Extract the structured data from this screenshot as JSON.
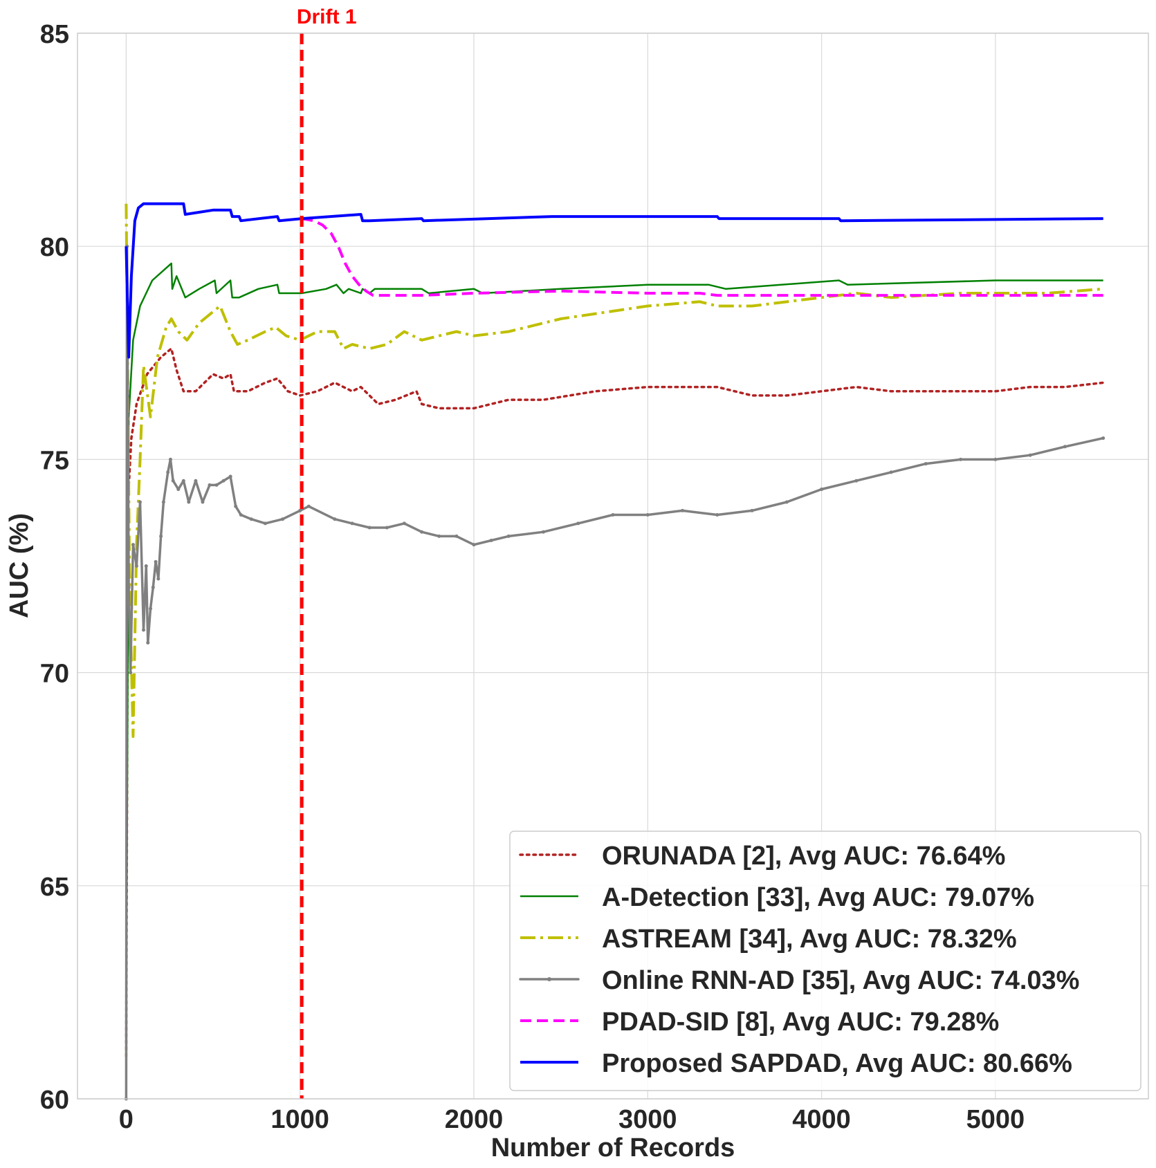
{
  "chart_data": {
    "type": "line",
    "xlabel": "Number of Records",
    "ylabel": "AUC (%)",
    "xlim": [
      -280,
      5880
    ],
    "ylim": [
      60,
      85
    ],
    "xticks": [
      0,
      1000,
      2000,
      3000,
      4000,
      5000
    ],
    "yticks": [
      60,
      65,
      70,
      75,
      80,
      85
    ],
    "grid": true,
    "legend_position": "lower-right",
    "annotation": {
      "label": "Drift 1",
      "x": 1010,
      "color": "#ff0000"
    },
    "series": [
      {
        "name": "ORUNADA [2], Avg AUC: 76.64%",
        "color": "#b22222",
        "style": "dotted",
        "x": [
          0,
          10,
          30,
          60,
          120,
          200,
          260,
          290,
          330,
          400,
          500,
          560,
          600,
          620,
          700,
          800,
          870,
          930,
          1000,
          1100,
          1200,
          1300,
          1350,
          1450,
          1550,
          1670,
          1700,
          1800,
          2000,
          2200,
          2400,
          2700,
          3000,
          3200,
          3400,
          3600,
          3800,
          4000,
          4200,
          4400,
          4600,
          4800,
          5000,
          5200,
          5400,
          5620
        ],
        "y": [
          61.0,
          74.0,
          75.5,
          76.3,
          77.0,
          77.4,
          77.6,
          77.1,
          76.6,
          76.6,
          77.0,
          76.9,
          77.0,
          76.6,
          76.6,
          76.8,
          76.9,
          76.6,
          76.5,
          76.6,
          76.8,
          76.6,
          76.7,
          76.3,
          76.4,
          76.6,
          76.3,
          76.2,
          76.2,
          76.4,
          76.4,
          76.6,
          76.7,
          76.7,
          76.7,
          76.5,
          76.5,
          76.6,
          76.7,
          76.6,
          76.6,
          76.6,
          76.6,
          76.7,
          76.7,
          76.8
        ]
      },
      {
        "name": "A-Detection [33], Avg AUC: 79.07%",
        "color": "#008000",
        "style": "solid",
        "x": [
          0,
          15,
          40,
          80,
          150,
          260,
          265,
          290,
          330,
          340,
          420,
          510,
          520,
          600,
          610,
          650,
          760,
          870,
          880,
          920,
          1010,
          1150,
          1210,
          1250,
          1280,
          1350,
          1360,
          1400,
          1430,
          1500,
          1700,
          1740,
          2000,
          2050,
          2500,
          3000,
          3350,
          3450,
          4100,
          4150,
          5000,
          5620
        ],
        "y": [
          61.0,
          76.0,
          77.8,
          78.6,
          79.2,
          79.6,
          79.0,
          79.3,
          78.9,
          78.8,
          79.0,
          79.2,
          78.9,
          79.2,
          78.8,
          78.8,
          79.0,
          79.1,
          78.9,
          78.9,
          78.9,
          79.0,
          79.1,
          78.9,
          79.0,
          78.9,
          79.0,
          78.9,
          79.0,
          79.0,
          79.0,
          78.9,
          79.0,
          78.9,
          79.0,
          79.1,
          79.1,
          79.0,
          79.2,
          79.1,
          79.2,
          79.2
        ]
      },
      {
        "name": "ASTREAM [34], Avg AUC: 78.32%",
        "color": "#bfbf00",
        "style": "dashdot",
        "x": [
          0,
          10,
          20,
          40,
          60,
          80,
          100,
          140,
          180,
          230,
          260,
          300,
          350,
          420,
          480,
          540,
          580,
          600,
          640,
          700,
          800,
          860,
          920,
          1000,
          1100,
          1200,
          1250,
          1300,
          1400,
          1500,
          1600,
          1700,
          1800,
          1900,
          2000,
          2200,
          2500,
          3000,
          3300,
          3400,
          3600,
          4000,
          4200,
          4400,
          4800,
          5300,
          5620
        ],
        "y": [
          81.0,
          76.5,
          72.0,
          68.5,
          73.0,
          75.0,
          77.2,
          76.0,
          77.4,
          78.1,
          78.3,
          78.0,
          77.8,
          78.2,
          78.4,
          78.6,
          78.2,
          78.0,
          77.7,
          77.8,
          78.0,
          78.1,
          77.9,
          77.8,
          78.0,
          78.0,
          77.6,
          77.7,
          77.6,
          77.7,
          78.0,
          77.8,
          77.9,
          78.0,
          77.9,
          78.0,
          78.3,
          78.6,
          78.7,
          78.6,
          78.6,
          78.8,
          78.9,
          78.8,
          78.9,
          78.9,
          79.0
        ]
      },
      {
        "name": "Online RNN-AD [35], Avg AUC: 74.03%",
        "color": "#808080",
        "style": "solid-dots",
        "x": [
          0,
          5,
          15,
          25,
          40,
          60,
          80,
          100,
          115,
          125,
          140,
          155,
          170,
          185,
          200,
          215,
          240,
          255,
          270,
          300,
          330,
          360,
          400,
          440,
          480,
          520,
          560,
          600,
          630,
          660,
          720,
          800,
          900,
          1000,
          1050,
          1200,
          1300,
          1400,
          1500,
          1600,
          1700,
          1800,
          1900,
          2000,
          2100,
          2200,
          2400,
          2600,
          2800,
          3000,
          3200,
          3400,
          3600,
          3800,
          4000,
          4200,
          4400,
          4600,
          4800,
          5000,
          5200,
          5400,
          5620
        ],
        "y": [
          60.0,
          80.0,
          72.0,
          70.0,
          73.0,
          72.5,
          74.0,
          71.0,
          72.5,
          70.7,
          71.5,
          72.0,
          72.6,
          72.2,
          73.2,
          74.0,
          74.7,
          75.0,
          74.5,
          74.3,
          74.5,
          74.0,
          74.5,
          74.0,
          74.4,
          74.4,
          74.5,
          74.6,
          73.9,
          73.7,
          73.6,
          73.5,
          73.6,
          73.8,
          73.9,
          73.6,
          73.5,
          73.4,
          73.4,
          73.5,
          73.3,
          73.2,
          73.2,
          73.0,
          73.1,
          73.2,
          73.3,
          73.5,
          73.7,
          73.7,
          73.8,
          73.7,
          73.8,
          74.0,
          74.3,
          74.5,
          74.7,
          74.9,
          75.0,
          75.0,
          75.1,
          75.3,
          75.5
        ]
      },
      {
        "name": "PDAD-SID [8],  Avg AUC: 79.28%",
        "color": "#ff00ff",
        "style": "dashed",
        "x": [
          1010,
          1080,
          1130,
          1180,
          1220,
          1260,
          1300,
          1340,
          1380,
          1420,
          1500,
          1700,
          2000,
          2500,
          3000,
          3300,
          3400,
          4000,
          4500,
          5000,
          5620
        ],
        "y": [
          80.65,
          80.6,
          80.5,
          80.3,
          80.0,
          79.6,
          79.3,
          79.1,
          78.95,
          78.85,
          78.85,
          78.85,
          78.9,
          78.95,
          78.9,
          78.9,
          78.85,
          78.85,
          78.85,
          78.85,
          78.85
        ]
      },
      {
        "name": "Proposed SAPDAD,  Avg AUC: 80.66%",
        "color": "#0000ff",
        "style": "solid-thick",
        "x": [
          0,
          15,
          30,
          50,
          70,
          100,
          200,
          330,
          340,
          500,
          600,
          610,
          650,
          660,
          870,
          880,
          1010,
          1350,
          1360,
          1400,
          1700,
          1710,
          2450,
          2460,
          3400,
          3410,
          4100,
          4110,
          5620
        ],
        "y": [
          80.0,
          77.4,
          79.3,
          80.6,
          80.9,
          81.0,
          81.0,
          81.0,
          80.75,
          80.85,
          80.85,
          80.7,
          80.7,
          80.6,
          80.7,
          80.6,
          80.65,
          80.75,
          80.6,
          80.6,
          80.65,
          80.6,
          80.7,
          80.7,
          80.7,
          80.65,
          80.65,
          80.6,
          80.65
        ]
      }
    ]
  }
}
